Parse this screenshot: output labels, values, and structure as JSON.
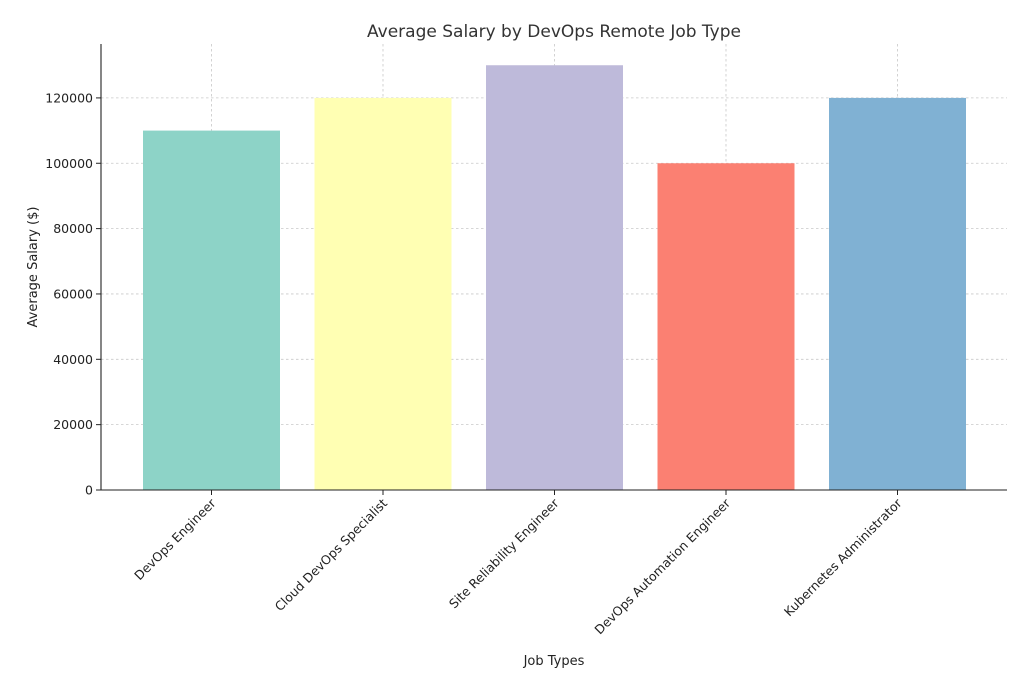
{
  "chart_data": {
    "type": "bar",
    "title": "Average Salary by DevOps Remote Job Type",
    "xlabel": "Job Types",
    "ylabel": "Average Salary ($)",
    "categories": [
      "DevOps Engineer",
      "Cloud DevOps Specialist",
      "Site Reliability Engineer",
      "DevOps Automation Engineer",
      "Kubernetes Administrator"
    ],
    "values": [
      110000,
      120000,
      130000,
      100000,
      120000
    ],
    "colors": [
      "#8dd3c7",
      "#ffffb3",
      "#bebada",
      "#fb8072",
      "#80b1d3"
    ],
    "ylim": [
      0,
      136500
    ],
    "yticks": [
      0,
      20000,
      40000,
      60000,
      80000,
      100000,
      120000
    ],
    "grid": true
  }
}
